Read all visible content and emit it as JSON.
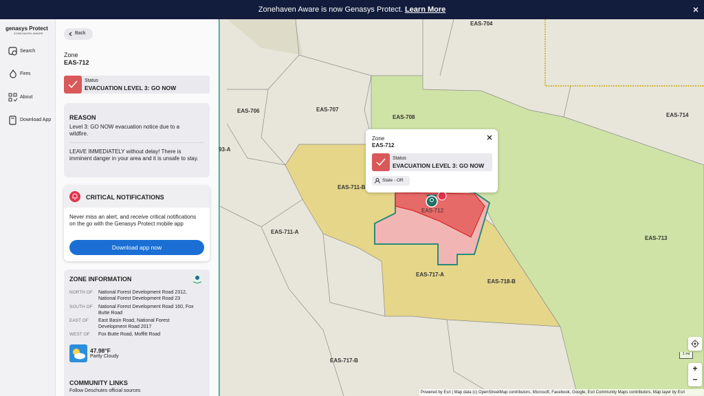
{
  "banner": {
    "text": "Zonehaven Aware is now Genasys Protect.",
    "link": "Learn More"
  },
  "logo": {
    "brand": "genasys Protect",
    "sub": "ZONEHAVEN AWARE"
  },
  "nav": [
    "Search",
    "Fires",
    "About",
    "Download App"
  ],
  "panel": {
    "back": "Back",
    "zone_label": "Zone",
    "zone_id": "EAS-712",
    "status_label": "Status",
    "status": "EVACUATION LEVEL 3: GO NOW",
    "reason": {
      "title": "REASON",
      "text1": "Level 3: GO NOW evacuation notice due to a wildfire.",
      "text2": "LEAVE IMMEDIATELY without delay! There is imminent danger in your area and it is unsafe to stay."
    },
    "critical": {
      "title": "CRITICAL NOTIFICATIONS",
      "text": "Never miss an alert, and receive critical notifications on the go with the Genasys Protect mobile app",
      "button": "Download app now"
    },
    "zone_info": {
      "title": "ZONE INFORMATION",
      "rows": [
        {
          "label": "NORTH OF",
          "value": "National Forest Development Road 2312, National Forest Development Road 23"
        },
        {
          "label": "SOUTH OF",
          "value": "National Forest Development Road 160, Fox Butte Road"
        },
        {
          "label": "EAST OF",
          "value": "East Basin Road, National Forest Development Road 2017"
        },
        {
          "label": "WEST OF",
          "value": "Fox Butte Road, Moffitt Road"
        }
      ],
      "temperature": "47.98°F",
      "weather": "Partly Cloudy"
    },
    "community": {
      "title": "COMMUNITY LINKS",
      "text": "Follow Deschutes official sources"
    }
  },
  "map": {
    "labels": [
      "EAS-704",
      "EAS-706",
      "EAS-707",
      "EAS-708",
      "EAS-714",
      "93-A",
      "EAS-711-B",
      "EAS-712",
      "EAS-711-A",
      "EAS-713",
      "EAS-717-A",
      "EAS-718-B",
      "EAS-717-B"
    ],
    "scale": "1 mi",
    "zoom_in": "+",
    "zoom_out": "−",
    "attribution": "Powered by Esri | Map data (c) OpenStreetMap contributors, Microsoft, Facebook, Google, Esri Community Maps contributors, Map layer by Esri"
  },
  "popup": {
    "zone_label": "Zone",
    "zone_id": "EAS-712",
    "status_label": "Status",
    "status": "EVACUATION LEVEL 3: GO NOW",
    "state": "State - OR"
  }
}
